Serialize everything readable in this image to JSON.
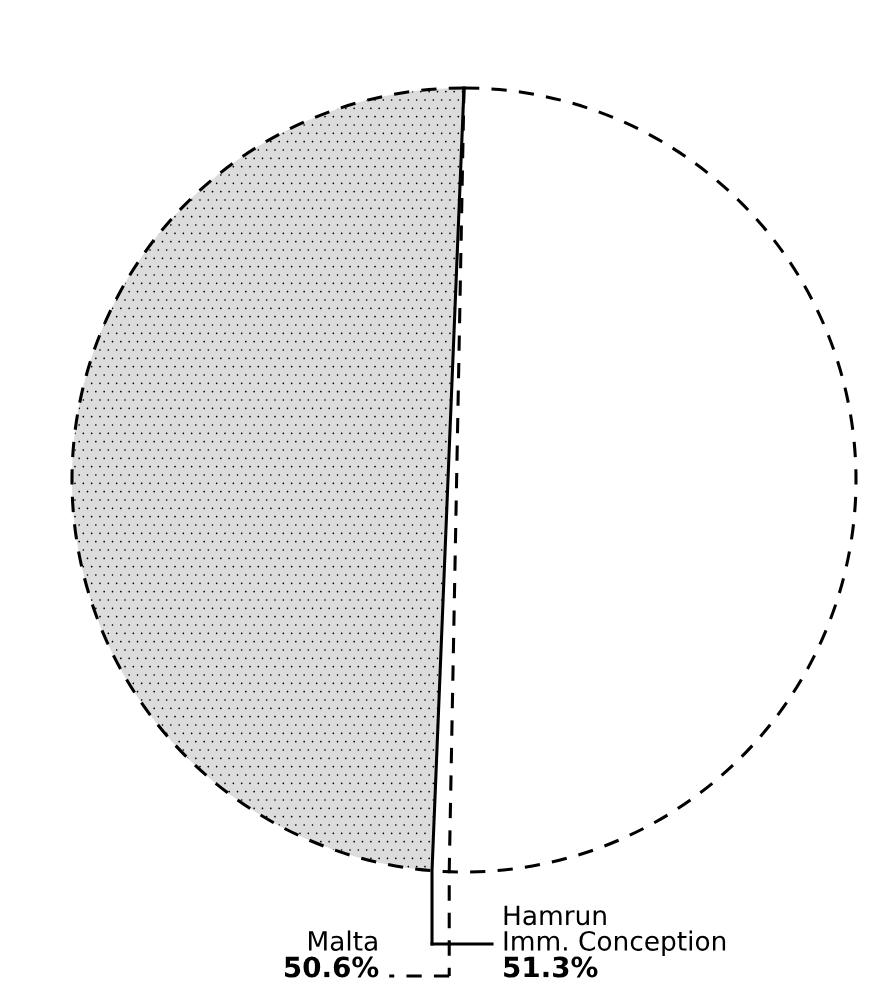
{
  "chart_data": {
    "type": "other",
    "series": [
      {
        "name": "Malta",
        "values": [
          50.6
        ],
        "value_labels": [
          "50.6%"
        ],
        "line_style": "dashed",
        "color": "#000000"
      },
      {
        "name": "Hamrun\nImm. Conception",
        "values": [
          51.3
        ],
        "value_labels": [
          "51.3%"
        ],
        "line_style": "solid",
        "color": "#000000"
      }
    ]
  }
}
